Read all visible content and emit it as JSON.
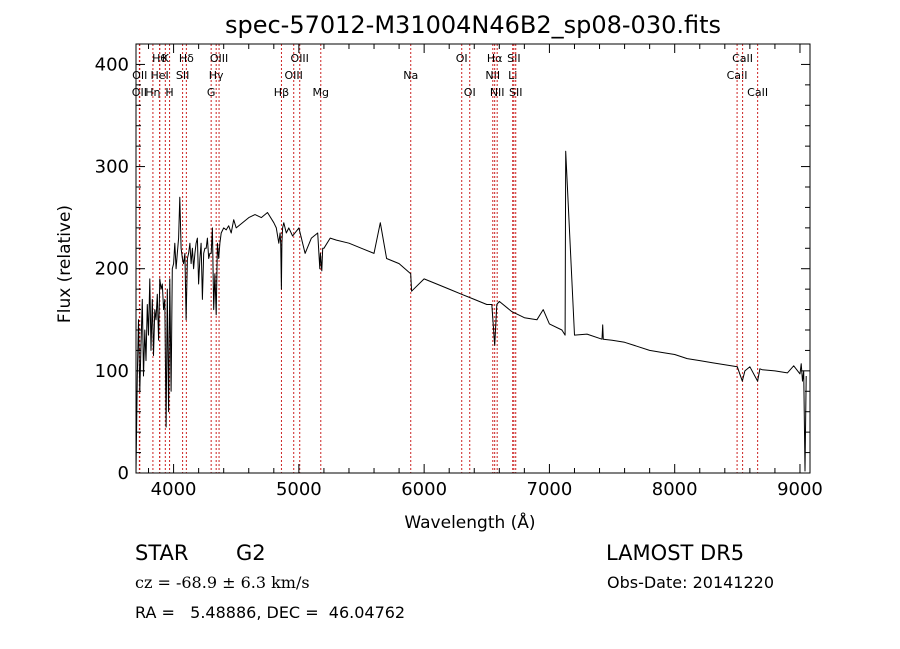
{
  "chart_data": {
    "type": "line",
    "title": "spec-57012-M31004N46B2_sp08-030.fits",
    "xlabel": "Wavelength (Å)",
    "ylabel": "Flux (relative)",
    "xlim": [
      3700,
      9080
    ],
    "ylim": [
      0,
      420
    ],
    "xticks": [
      4000,
      5000,
      6000,
      7000,
      8000,
      9000
    ],
    "yticks": [
      0,
      100,
      200,
      300,
      400
    ],
    "grid": false,
    "line_color": "#000000",
    "marker_color": "#cc2222",
    "series": [
      {
        "x": [
          3700,
          3710,
          3720,
          3730,
          3740,
          3750,
          3760,
          3770,
          3780,
          3790,
          3800,
          3810,
          3820,
          3830,
          3840,
          3850,
          3860,
          3870,
          3880,
          3890,
          3900,
          3910,
          3920,
          3930,
          3940,
          3950,
          3960,
          3970,
          3980,
          3990,
          4000,
          4010,
          4020,
          4030,
          4040,
          4050,
          4060,
          4070,
          4080,
          4090,
          4100,
          4110,
          4120,
          4130,
          4140,
          4150,
          4160,
          4170,
          4180,
          4190,
          4200,
          4210,
          4220,
          4230,
          4240,
          4250,
          4260,
          4270,
          4280,
          4290,
          4300,
          4310,
          4320,
          4330,
          4340,
          4350,
          4360,
          4370,
          4380,
          4400,
          4420,
          4440,
          4460,
          4480,
          4500,
          4550,
          4600,
          4650,
          4700,
          4750,
          4800,
          4820,
          4840,
          4850,
          4855,
          4861,
          4865,
          4870,
          4880,
          4900,
          4920,
          4950,
          5000,
          5050,
          5100,
          5150,
          5167,
          5172,
          5183,
          5190,
          5200,
          5250,
          5300,
          5400,
          5500,
          5600,
          5650,
          5700,
          5800,
          5893,
          5900,
          6000,
          6100,
          6200,
          6300,
          6400,
          6500,
          6540,
          6563,
          6580,
          6600,
          6700,
          6800,
          6900,
          6950,
          7000,
          7100,
          7125,
          7130,
          7200,
          7300,
          7420,
          7425,
          7430,
          7500,
          7600,
          7700,
          7800,
          7900,
          8000,
          8100,
          8200,
          8300,
          8400,
          8500,
          8540,
          8560,
          8600,
          8662,
          8680,
          8700,
          8800,
          8900,
          8950,
          9000,
          9010,
          9020,
          9030,
          9040,
          9050
        ],
        "y": [
          0,
          95,
          150,
          80,
          125,
          170,
          95,
          140,
          110,
          165,
          135,
          190,
          120,
          170,
          115,
          160,
          150,
          175,
          130,
          190,
          180,
          185,
          160,
          170,
          45,
          180,
          60,
          190,
          80,
          200,
          205,
          225,
          200,
          215,
          230,
          270,
          220,
          210,
          205,
          215,
          150,
          210,
          215,
          225,
          205,
          220,
          200,
          215,
          225,
          230,
          185,
          210,
          225,
          170,
          215,
          220,
          220,
          230,
          210,
          215,
          215,
          240,
          160,
          195,
          155,
          225,
          210,
          225,
          235,
          240,
          238,
          242,
          235,
          248,
          240,
          245,
          250,
          253,
          250,
          255,
          245,
          240,
          225,
          235,
          225,
          180,
          225,
          240,
          245,
          235,
          240,
          232,
          240,
          215,
          230,
          235,
          200,
          215,
          198,
          220,
          220,
          230,
          228,
          225,
          220,
          215,
          245,
          210,
          205,
          195,
          178,
          190,
          185,
          180,
          175,
          170,
          165,
          165,
          125,
          165,
          168,
          158,
          152,
          150,
          160,
          146,
          140,
          135,
          315,
          135,
          136,
          131,
          145,
          131,
          130,
          128,
          124,
          120,
          118,
          116,
          112,
          110,
          108,
          106,
          104,
          90,
          100,
          104,
          90,
          102,
          101,
          100,
          98,
          105,
          97,
          107,
          90,
          100,
          2,
          95
        ]
      }
    ],
    "spectral_lines": [
      {
        "wl": 3727,
        "label": "OII",
        "row": 2
      },
      {
        "wl": 3730,
        "label": "OII",
        "row": 1
      },
      {
        "wl": 3835,
        "label": "Hη",
        "row": 2
      },
      {
        "wl": 3889,
        "label": "Hθ",
        "row": 0
      },
      {
        "wl": 3889,
        "label": "HeI",
        "row": 1
      },
      {
        "wl": 3934,
        "label": "K",
        "row": 0
      },
      {
        "wl": 3968,
        "label": "H",
        "row": 2
      },
      {
        "wl": 4072,
        "label": "SII",
        "row": 1
      },
      {
        "wl": 4102,
        "label": "Hδ",
        "row": 0
      },
      {
        "wl": 4300,
        "label": "G",
        "row": 2
      },
      {
        "wl": 4340,
        "label": "Hγ",
        "row": 1
      },
      {
        "wl": 4363,
        "label": "OIII",
        "row": 0
      },
      {
        "wl": 4861,
        "label": "Hβ",
        "row": 2
      },
      {
        "wl": 4959,
        "label": "OIII",
        "row": 1
      },
      {
        "wl": 5007,
        "label": "OIII",
        "row": 0
      },
      {
        "wl": 5175,
        "label": "Mg",
        "row": 2
      },
      {
        "wl": 5893,
        "label": "Na",
        "row": 1
      },
      {
        "wl": 6300,
        "label": "OI",
        "row": 0
      },
      {
        "wl": 6364,
        "label": "OI",
        "row": 2
      },
      {
        "wl": 6548,
        "label": "NII",
        "row": 1
      },
      {
        "wl": 6563,
        "label": "Hα",
        "row": 0
      },
      {
        "wl": 6583,
        "label": "NII",
        "row": 2
      },
      {
        "wl": 6707,
        "label": "Li",
        "row": 1
      },
      {
        "wl": 6716,
        "label": "SII",
        "row": 0
      },
      {
        "wl": 6731,
        "label": "SII",
        "row": 2
      },
      {
        "wl": 8498,
        "label": "CaII",
        "row": 1
      },
      {
        "wl": 8542,
        "label": "CaII",
        "row": 0
      },
      {
        "wl": 8662,
        "label": "CaII",
        "row": 2
      }
    ]
  },
  "info": {
    "object_class": "STAR",
    "subclass": "G2",
    "survey": "LAMOST DR5",
    "redshift_text": "cz = -68.9 ± 6.3 km/s",
    "obs_date_text": "Obs-Date: 20141220",
    "coords_text": "RA =   5.48886, DEC =  46.04762"
  }
}
